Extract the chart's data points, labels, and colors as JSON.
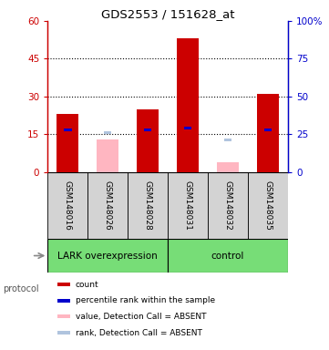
{
  "title": "GDS2553 / 151628_at",
  "samples": [
    "GSM148016",
    "GSM148026",
    "GSM148028",
    "GSM148031",
    "GSM148032",
    "GSM148035"
  ],
  "red_values": [
    23,
    0,
    25,
    53,
    0,
    31
  ],
  "blue_values": [
    28,
    0,
    28,
    29,
    0,
    28
  ],
  "pink_values": [
    0,
    13,
    0,
    0,
    4,
    0
  ],
  "lightblue_values": [
    0,
    26,
    0,
    0,
    21,
    0
  ],
  "ylim_left": [
    0,
    60
  ],
  "ylim_right": [
    0,
    100
  ],
  "yticks_left": [
    0,
    15,
    30,
    45,
    60
  ],
  "yticks_right": [
    0,
    25,
    50,
    75,
    100
  ],
  "ytick_labels_right": [
    "0",
    "25",
    "50",
    "75",
    "100%"
  ],
  "ytick_labels_left": [
    "0",
    "15",
    "30",
    "45",
    "60"
  ],
  "left_axis_color": "#cc0000",
  "right_axis_color": "#0000cc",
  "legend_items": [
    {
      "label": "count",
      "color": "#cc0000"
    },
    {
      "label": "percentile rank within the sample",
      "color": "#0000cc"
    },
    {
      "label": "value, Detection Call = ABSENT",
      "color": "#ffb6c1"
    },
    {
      "label": "rank, Detection Call = ABSENT",
      "color": "#b0c4de"
    }
  ],
  "protocol_label": "protocol",
  "lark_label": "LARK overexpression",
  "control_label": "control",
  "lark_color": "#77dd77",
  "control_color": "#77dd77"
}
